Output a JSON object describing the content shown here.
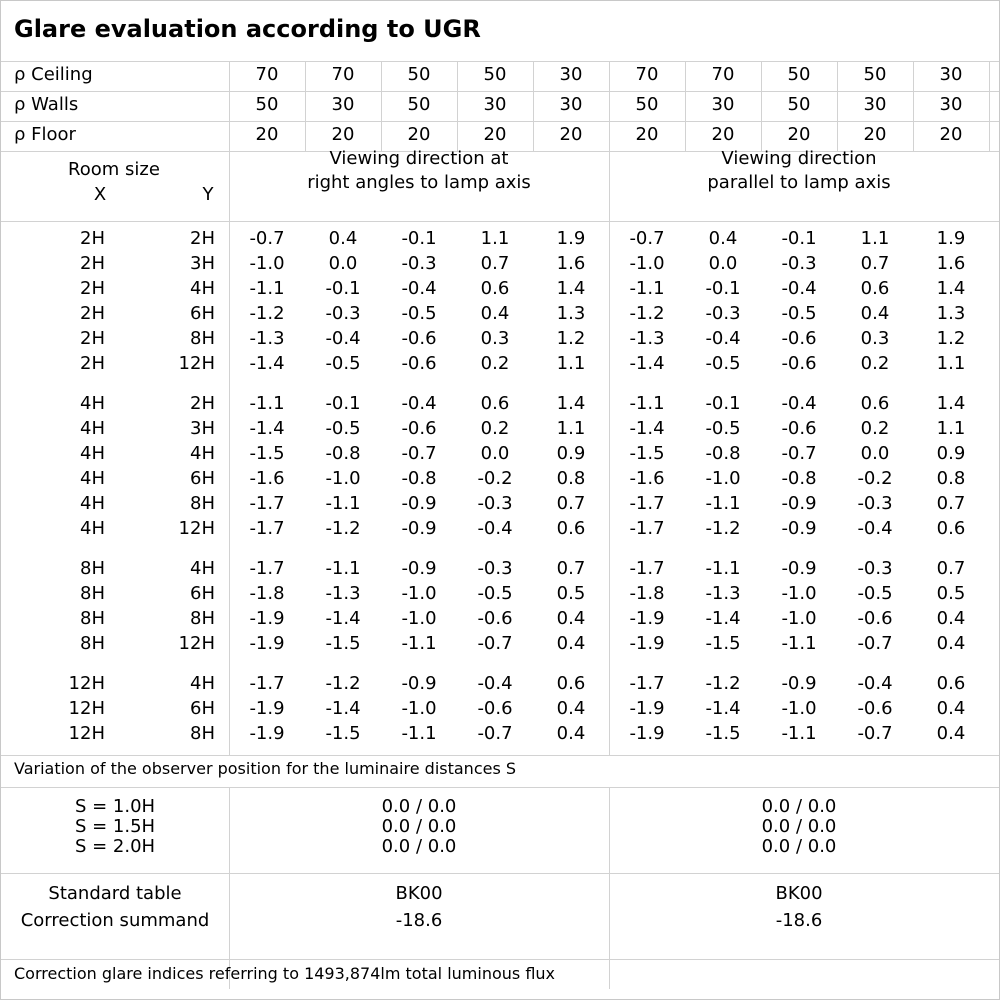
{
  "title": "Glare evaluation according to UGR",
  "reflectances": [
    {
      "label": "ρ Ceiling",
      "values": [
        "70",
        "70",
        "50",
        "50",
        "30",
        "70",
        "70",
        "50",
        "50",
        "30"
      ]
    },
    {
      "label": "ρ Walls",
      "values": [
        "50",
        "30",
        "50",
        "30",
        "30",
        "50",
        "30",
        "50",
        "30",
        "30"
      ]
    },
    {
      "label": "ρ Floor",
      "values": [
        "20",
        "20",
        "20",
        "20",
        "20",
        "20",
        "20",
        "20",
        "20",
        "20"
      ]
    }
  ],
  "room_size": {
    "label": "Room size",
    "x_label": "X",
    "y_label": "Y"
  },
  "direction_headers": [
    [
      "Viewing direction at",
      "right angles to lamp axis"
    ],
    [
      "Viewing direction",
      "parallel to lamp axis"
    ]
  ],
  "groups": [
    {
      "rows": [
        {
          "x": "2H",
          "y": "2H",
          "values": [
            "-0.7",
            "0.4",
            "-0.1",
            "1.1",
            "1.9",
            "-0.7",
            "0.4",
            "-0.1",
            "1.1",
            "1.9"
          ]
        },
        {
          "x": "2H",
          "y": "3H",
          "values": [
            "-1.0",
            "0.0",
            "-0.3",
            "0.7",
            "1.6",
            "-1.0",
            "0.0",
            "-0.3",
            "0.7",
            "1.6"
          ]
        },
        {
          "x": "2H",
          "y": "4H",
          "values": [
            "-1.1",
            "-0.1",
            "-0.4",
            "0.6",
            "1.4",
            "-1.1",
            "-0.1",
            "-0.4",
            "0.6",
            "1.4"
          ]
        },
        {
          "x": "2H",
          "y": "6H",
          "values": [
            "-1.2",
            "-0.3",
            "-0.5",
            "0.4",
            "1.3",
            "-1.2",
            "-0.3",
            "-0.5",
            "0.4",
            "1.3"
          ]
        },
        {
          "x": "2H",
          "y": "8H",
          "values": [
            "-1.3",
            "-0.4",
            "-0.6",
            "0.3",
            "1.2",
            "-1.3",
            "-0.4",
            "-0.6",
            "0.3",
            "1.2"
          ]
        },
        {
          "x": "2H",
          "y": "12H",
          "values": [
            "-1.4",
            "-0.5",
            "-0.6",
            "0.2",
            "1.1",
            "-1.4",
            "-0.5",
            "-0.6",
            "0.2",
            "1.1"
          ]
        }
      ]
    },
    {
      "rows": [
        {
          "x": "4H",
          "y": "2H",
          "values": [
            "-1.1",
            "-0.1",
            "-0.4",
            "0.6",
            "1.4",
            "-1.1",
            "-0.1",
            "-0.4",
            "0.6",
            "1.4"
          ]
        },
        {
          "x": "4H",
          "y": "3H",
          "values": [
            "-1.4",
            "-0.5",
            "-0.6",
            "0.2",
            "1.1",
            "-1.4",
            "-0.5",
            "-0.6",
            "0.2",
            "1.1"
          ]
        },
        {
          "x": "4H",
          "y": "4H",
          "values": [
            "-1.5",
            "-0.8",
            "-0.7",
            "0.0",
            "0.9",
            "-1.5",
            "-0.8",
            "-0.7",
            "0.0",
            "0.9"
          ]
        },
        {
          "x": "4H",
          "y": "6H",
          "values": [
            "-1.6",
            "-1.0",
            "-0.8",
            "-0.2",
            "0.8",
            "-1.6",
            "-1.0",
            "-0.8",
            "-0.2",
            "0.8"
          ]
        },
        {
          "x": "4H",
          "y": "8H",
          "values": [
            "-1.7",
            "-1.1",
            "-0.9",
            "-0.3",
            "0.7",
            "-1.7",
            "-1.1",
            "-0.9",
            "-0.3",
            "0.7"
          ]
        },
        {
          "x": "4H",
          "y": "12H",
          "values": [
            "-1.7",
            "-1.2",
            "-0.9",
            "-0.4",
            "0.6",
            "-1.7",
            "-1.2",
            "-0.9",
            "-0.4",
            "0.6"
          ]
        }
      ]
    },
    {
      "rows": [
        {
          "x": "8H",
          "y": "4H",
          "values": [
            "-1.7",
            "-1.1",
            "-0.9",
            "-0.3",
            "0.7",
            "-1.7",
            "-1.1",
            "-0.9",
            "-0.3",
            "0.7"
          ]
        },
        {
          "x": "8H",
          "y": "6H",
          "values": [
            "-1.8",
            "-1.3",
            "-1.0",
            "-0.5",
            "0.5",
            "-1.8",
            "-1.3",
            "-1.0",
            "-0.5",
            "0.5"
          ]
        },
        {
          "x": "8H",
          "y": "8H",
          "values": [
            "-1.9",
            "-1.4",
            "-1.0",
            "-0.6",
            "0.4",
            "-1.9",
            "-1.4",
            "-1.0",
            "-0.6",
            "0.4"
          ]
        },
        {
          "x": "8H",
          "y": "12H",
          "values": [
            "-1.9",
            "-1.5",
            "-1.1",
            "-0.7",
            "0.4",
            "-1.9",
            "-1.5",
            "-1.1",
            "-0.7",
            "0.4"
          ]
        }
      ]
    },
    {
      "rows": [
        {
          "x": "12H",
          "y": "4H",
          "values": [
            "-1.7",
            "-1.2",
            "-0.9",
            "-0.4",
            "0.6",
            "-1.7",
            "-1.2",
            "-0.9",
            "-0.4",
            "0.6"
          ]
        },
        {
          "x": "12H",
          "y": "6H",
          "values": [
            "-1.9",
            "-1.4",
            "-1.0",
            "-0.6",
            "0.4",
            "-1.9",
            "-1.4",
            "-1.0",
            "-0.6",
            "0.4"
          ]
        },
        {
          "x": "12H",
          "y": "8H",
          "values": [
            "-1.9",
            "-1.5",
            "-1.1",
            "-0.7",
            "0.4",
            "-1.9",
            "-1.5",
            "-1.1",
            "-0.7",
            "0.4"
          ]
        }
      ]
    }
  ],
  "variation_note": "Variation of the observer position for the luminaire distances S",
  "spacing": [
    {
      "label": "S = 1.0H",
      "values": [
        "0.0 / 0.0",
        "0.0 / 0.0"
      ]
    },
    {
      "label": "S = 1.5H",
      "values": [
        "0.0 / 0.0",
        "0.0 / 0.0"
      ]
    },
    {
      "label": "S = 2.0H",
      "values": [
        "0.0 / 0.0",
        "0.0 / 0.0"
      ]
    }
  ],
  "standard_table": {
    "label": "Standard table",
    "values": [
      "BK00",
      "BK00"
    ]
  },
  "correction_summand": {
    "label": "Correction summand",
    "values": [
      "-18.6",
      "-18.6"
    ]
  },
  "footer_note": "Correction glare indices referring to 1493,874lm total luminous flux"
}
